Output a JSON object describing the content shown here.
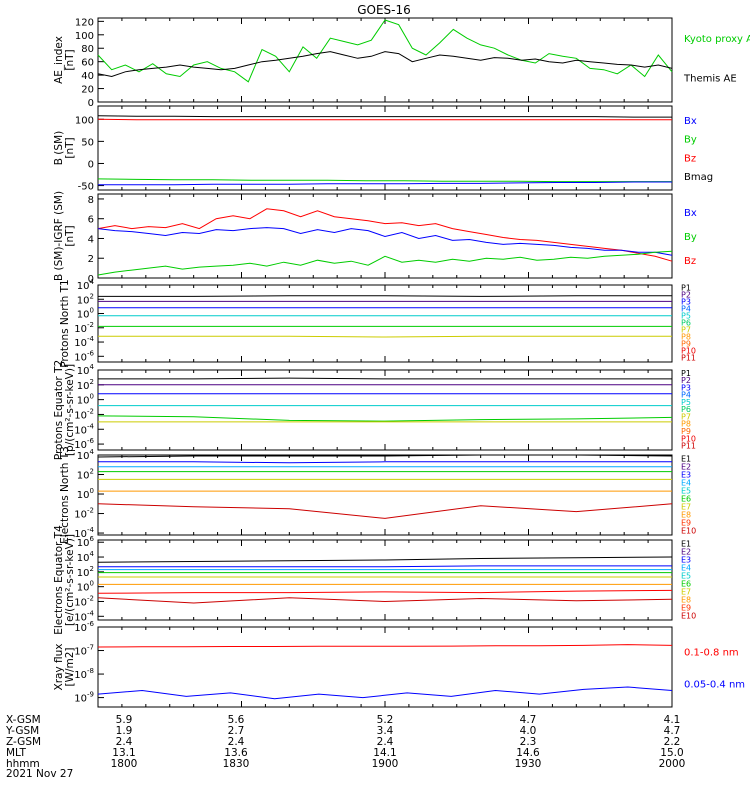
{
  "title": "GOES-16",
  "date_label": "2021 Nov 27",
  "colors": {
    "black": "#000000",
    "blue": "#0000ff",
    "green": "#00cc00",
    "red": "#ff0000",
    "cyan": "#00cccc",
    "yellow": "#cccc00",
    "orange": "#ff9900"
  },
  "ephemeris": {
    "rows": [
      {
        "label": "X-GSM",
        "values": [
          "5.9",
          "5.6",
          "5.2",
          "4.7",
          "4.1"
        ]
      },
      {
        "label": "Y-GSM",
        "values": [
          "1.9",
          "2.7",
          "3.4",
          "4.0",
          "4.7"
        ]
      },
      {
        "label": "Z-GSM",
        "values": [
          "2.4",
          "2.4",
          "2.4",
          "2.3",
          "2.2"
        ]
      },
      {
        "label": "MLT",
        "values": [
          "13.1",
          "13.6",
          "14.1",
          "14.6",
          "15.0"
        ]
      },
      {
        "label": "hhmm",
        "values": [
          "1800",
          "1830",
          "1900",
          "1930",
          "2000"
        ]
      }
    ]
  },
  "chart_data": [
    {
      "type": "line",
      "ylabel": "AE_index [nT]",
      "yticks": [
        "120",
        "100",
        "80",
        "60",
        "40",
        "20",
        "0"
      ],
      "ylim": [
        0,
        125
      ],
      "legend": [
        {
          "text": "Kyoto proxy AE",
          "color": "#00cc00"
        },
        {
          "text": "Themis AE",
          "color": "#000000"
        }
      ],
      "series": [
        {
          "name": "Kyoto proxy AE",
          "color": "#00cc00",
          "values": [
            70,
            48,
            55,
            45,
            57,
            42,
            38,
            55,
            60,
            50,
            45,
            30,
            78,
            68,
            45,
            82,
            65,
            95,
            90,
            85,
            92,
            122,
            115,
            80,
            70,
            88,
            108,
            95,
            85,
            80,
            70,
            62,
            58,
            72,
            68,
            65,
            50,
            48,
            42,
            55,
            38,
            70,
            45
          ]
        },
        {
          "name": "Themis AE",
          "color": "#000000",
          "values": [
            42,
            38,
            45,
            48,
            50,
            52,
            55,
            52,
            50,
            48,
            50,
            55,
            60,
            62,
            65,
            68,
            72,
            75,
            70,
            65,
            68,
            75,
            72,
            60,
            65,
            70,
            68,
            65,
            62,
            66,
            65,
            62,
            64,
            60,
            58,
            62,
            60,
            58,
            56,
            55,
            52,
            55,
            50
          ]
        }
      ]
    },
    {
      "type": "line",
      "ylabel": "B (SM) [nT]",
      "yticks": [
        "100",
        "50",
        "0",
        "-50"
      ],
      "ylim": [
        -60,
        130
      ],
      "legend": [
        {
          "text": "Bx",
          "color": "#0000ff"
        },
        {
          "text": "By",
          "color": "#00cc00"
        },
        {
          "text": "Bz",
          "color": "#ff0000"
        },
        {
          "text": "Bmag",
          "color": "#000000"
        }
      ],
      "series": [
        {
          "name": "Bmag",
          "color": "#000000",
          "values": [
            108,
            107,
            107,
            106,
            106,
            106,
            106,
            106,
            106,
            106,
            106,
            106,
            106,
            106,
            105,
            105
          ]
        },
        {
          "name": "Bz",
          "color": "#ff0000",
          "values": [
            100,
            99,
            99,
            99,
            99,
            99,
            99,
            99,
            99,
            99,
            99,
            99,
            99,
            99,
            99,
            99
          ]
        },
        {
          "name": "By",
          "color": "#00cc00",
          "values": [
            -35,
            -36,
            -37,
            -37,
            -38,
            -38,
            -38,
            -39,
            -39,
            -40,
            -40,
            -40,
            -41,
            -41,
            -41,
            -41
          ]
        },
        {
          "name": "Bx",
          "color": "#0000ff",
          "values": [
            -48,
            -48,
            -48,
            -47,
            -47,
            -47,
            -46,
            -46,
            -46,
            -45,
            -45,
            -44,
            -43,
            -43,
            -42,
            -42
          ]
        }
      ]
    },
    {
      "type": "line",
      "ylabel": "B (SM)-IGRF (SM) [nT]",
      "yticks": [
        "8",
        "6",
        "4",
        "2",
        "0"
      ],
      "ylim": [
        0,
        8.5
      ],
      "legend": [
        {
          "text": "Bx",
          "color": "#0000ff"
        },
        {
          "text": "By",
          "color": "#00cc00"
        },
        {
          "text": "Bz",
          "color": "#ff0000"
        }
      ],
      "series": [
        {
          "name": "Bz",
          "color": "#ff0000",
          "values": [
            5.0,
            5.3,
            5.0,
            5.2,
            5.1,
            5.5,
            5.0,
            6.0,
            6.3,
            6.0,
            7.0,
            6.8,
            6.2,
            6.8,
            6.2,
            6.0,
            5.8,
            5.5,
            5.6,
            5.3,
            5.5,
            5.0,
            4.7,
            4.4,
            4.1,
            3.9,
            3.8,
            3.6,
            3.4,
            3.2,
            3.0,
            2.8,
            2.5,
            2.2,
            1.7
          ]
        },
        {
          "name": "Bx",
          "color": "#0000ff",
          "values": [
            5.0,
            4.8,
            4.7,
            4.5,
            4.3,
            4.6,
            4.5,
            4.9,
            4.8,
            5.0,
            5.1,
            5.0,
            4.5,
            4.9,
            4.6,
            5.0,
            4.8,
            4.2,
            4.6,
            4.0,
            4.3,
            3.8,
            3.9,
            3.6,
            3.4,
            3.5,
            3.4,
            3.3,
            3.1,
            3.0,
            2.8,
            2.8,
            2.6,
            2.6,
            2.3
          ]
        },
        {
          "name": "By",
          "color": "#00cc00",
          "values": [
            0.3,
            0.6,
            0.8,
            1.0,
            1.2,
            0.9,
            1.1,
            1.2,
            1.3,
            1.5,
            1.2,
            1.6,
            1.3,
            1.8,
            1.5,
            1.7,
            1.3,
            2.2,
            1.6,
            1.8,
            1.6,
            1.9,
            1.7,
            2.0,
            1.9,
            2.1,
            1.8,
            1.9,
            2.1,
            2.0,
            2.2,
            2.3,
            2.4,
            2.6,
            2.7
          ]
        }
      ]
    },
    {
      "type": "line",
      "log": true,
      "ylabel": "Protons North T1",
      "ytick_exponents": [
        4,
        2,
        0,
        -2,
        -4,
        -6
      ],
      "ylim_exp": [
        -6.8,
        4
      ],
      "channel_labels": [
        "P1",
        "P2",
        "P3",
        "P4",
        "P5",
        "P6",
        "P7",
        "P8",
        "P9",
        "P10",
        "P11"
      ],
      "channel_colors": [
        "#000000",
        "#4b0082",
        "#0000ff",
        "#0066ff",
        "#00cccc",
        "#00cc66",
        "#cccc00",
        "#ff9900",
        "#ff6600",
        "#ee0000",
        "#cc0000"
      ],
      "series": [
        {
          "color": "#000000",
          "values": [
            2.4,
            2.4,
            2.5,
            2.5,
            2.4,
            2.5,
            2.5
          ]
        },
        {
          "color": "#4b0082",
          "values": [
            1.7,
            1.7,
            1.7,
            1.7,
            1.7,
            1.7,
            1.7
          ]
        },
        {
          "color": "#0000ff",
          "values": [
            0.8,
            0.8,
            0.8,
            0.8,
            0.8,
            0.8,
            0.8
          ]
        },
        {
          "color": "#00cccc",
          "values": [
            -0.3,
            -0.3,
            -0.3,
            -0.3,
            -0.3,
            -0.3,
            -0.3
          ]
        },
        {
          "color": "#00cc00",
          "values": [
            -1.8,
            -1.8,
            -1.8,
            -1.8,
            -1.8,
            -1.8,
            -1.8
          ]
        },
        {
          "color": "#cccc00",
          "values": [
            -3.2,
            -3.2,
            -3.2,
            -3.3,
            -3.2,
            -3.2,
            -3.2
          ]
        }
      ]
    },
    {
      "type": "line",
      "log": true,
      "ylabel": "Protons Equator T2 [p/(cm²-s-sr-keV)]",
      "ytick_exponents": [
        4,
        2,
        0,
        -2,
        -4,
        -6
      ],
      "ylim_exp": [
        -6.8,
        4
      ],
      "channel_labels": [
        "P1",
        "P2",
        "P3",
        "P4",
        "P5",
        "P6",
        "P7",
        "P8",
        "P9",
        "P10",
        "P11"
      ],
      "channel_colors": [
        "#000000",
        "#4b0082",
        "#0000ff",
        "#0066ff",
        "#00cccc",
        "#00cc66",
        "#cccc00",
        "#ff9900",
        "#ff6600",
        "#ee0000",
        "#cc0000"
      ],
      "series": [
        {
          "color": "#000000",
          "values": [
            2.8,
            2.8,
            2.9,
            2.8,
            2.8,
            2.8,
            2.8
          ]
        },
        {
          "color": "#4b0082",
          "values": [
            2.0,
            2.0,
            2.0,
            2.0,
            2.0,
            2.0,
            2.0
          ]
        },
        {
          "color": "#0000ff",
          "values": [
            0.8,
            0.8,
            0.8,
            0.8,
            0.8,
            0.8,
            0.8
          ]
        },
        {
          "color": "#00cccc",
          "values": [
            -0.8,
            -0.8,
            -0.8,
            -0.8,
            -0.8,
            -0.8,
            -0.8
          ]
        },
        {
          "color": "#00cc00",
          "values": [
            -2.2,
            -2.3,
            -2.8,
            -2.9,
            -2.7,
            -2.6,
            -2.4
          ]
        },
        {
          "color": "#cccc00",
          "values": [
            -3.0,
            -3.0,
            -3.0,
            -3.0,
            -3.0,
            -3.0,
            -3.0
          ]
        }
      ]
    },
    {
      "type": "line",
      "log": true,
      "ylabel": "Electrons North T3",
      "ytick_exponents": [
        4,
        2,
        0,
        -2,
        -4
      ],
      "ylim_exp": [
        -4.2,
        4
      ],
      "channel_labels": [
        "E1",
        "E2",
        "E3",
        "E4",
        "E5",
        "E6",
        "E7",
        "E8",
        "E9",
        "E10"
      ],
      "channel_colors": [
        "#000000",
        "#4b0082",
        "#0000ff",
        "#00aaff",
        "#00cccc",
        "#00cc00",
        "#cccc00",
        "#ff9900",
        "#ff3300",
        "#cc0000"
      ],
      "series": [
        {
          "color": "#000000",
          "values": [
            3.8,
            3.9,
            3.9,
            3.9,
            4.0,
            4.0,
            3.9
          ]
        },
        {
          "color": "#0000ff",
          "values": [
            3.3,
            3.3,
            3.2,
            3.3,
            3.3,
            3.3,
            3.3
          ]
        },
        {
          "color": "#00aaff",
          "values": [
            2.8,
            2.8,
            2.8,
            2.8,
            2.8,
            2.8,
            2.8
          ]
        },
        {
          "color": "#00cc00",
          "values": [
            2.3,
            2.3,
            2.3,
            2.3,
            2.3,
            2.3,
            2.3
          ]
        },
        {
          "color": "#cccc00",
          "values": [
            1.5,
            1.5,
            1.5,
            1.5,
            1.5,
            1.5,
            1.5
          ]
        },
        {
          "color": "#ff9900",
          "values": [
            0.3,
            0.3,
            0.3,
            0.3,
            0.3,
            0.3,
            0.3
          ]
        },
        {
          "color": "#cc0000",
          "values": [
            -1.0,
            -1.3,
            -1.5,
            -2.5,
            -1.2,
            -1.8,
            -1.0
          ]
        }
      ]
    },
    {
      "type": "line",
      "log": true,
      "ylabel": "Electrons Equator T4 [e/(cm²-s-sr-keV)]",
      "ytick_exponents": [
        6,
        4,
        2,
        0,
        -2,
        -4
      ],
      "ylim_exp": [
        -4.5,
        6.3
      ],
      "channel_labels": [
        "E1",
        "E2",
        "E3",
        "E4",
        "E5",
        "E6",
        "E7",
        "E8",
        "E9",
        "E10"
      ],
      "channel_colors": [
        "#000000",
        "#4b0082",
        "#0000ff",
        "#00aaff",
        "#00cccc",
        "#00cc00",
        "#cccc00",
        "#ff9900",
        "#ff3300",
        "#cc0000"
      ],
      "series": [
        {
          "color": "#000000",
          "values": [
            3.3,
            3.4,
            3.5,
            3.6,
            3.8,
            3.9,
            4.0
          ]
        },
        {
          "color": "#0000ff",
          "values": [
            2.7,
            2.7,
            2.7,
            2.7,
            2.8,
            2.8,
            2.8
          ]
        },
        {
          "color": "#00aaff",
          "values": [
            2.3,
            2.3,
            2.3,
            2.3,
            2.3,
            2.3,
            2.3
          ]
        },
        {
          "color": "#00cc00",
          "values": [
            1.9,
            1.9,
            1.9,
            1.9,
            1.9,
            1.9,
            1.9
          ]
        },
        {
          "color": "#cccc00",
          "values": [
            1.3,
            1.3,
            1.3,
            1.3,
            1.3,
            1.3,
            1.3
          ]
        },
        {
          "color": "#ff9900",
          "values": [
            0.3,
            0.3,
            0.3,
            0.3,
            0.3,
            0.3,
            0.3
          ]
        },
        {
          "color": "#ff0000",
          "values": [
            -0.9,
            -0.8,
            -0.8,
            -0.7,
            -0.8,
            -0.6,
            -0.5
          ]
        },
        {
          "color": "#cc0000",
          "values": [
            -1.5,
            -2.2,
            -1.5,
            -2.0,
            -1.6,
            -1.9,
            -1.7
          ]
        }
      ]
    },
    {
      "type": "line",
      "log": true,
      "ylabel": "Xray flux [W/m2]",
      "ytick_exponents": [
        -6,
        -7,
        -8,
        -9
      ],
      "ylim_exp": [
        -9.4,
        -6
      ],
      "legend": [
        {
          "text": "0.1-0.8 nm",
          "color": "#ff0000"
        },
        {
          "text": "0.05-0.4 nm",
          "color": "#0000ff"
        }
      ],
      "series": [
        {
          "name": "0.1-0.8 nm",
          "color": "#ff0000",
          "values": [
            -6.85,
            -6.84,
            -6.84,
            -6.83,
            -6.83,
            -6.82,
            -6.82,
            -6.82,
            -6.81,
            -6.8,
            -6.8,
            -6.78,
            -6.75,
            -6.78
          ]
        },
        {
          "name": "0.05-0.4 nm",
          "color": "#0000ff",
          "values": [
            -8.85,
            -8.7,
            -8.95,
            -8.8,
            -9.05,
            -8.85,
            -9.0,
            -8.8,
            -8.95,
            -8.7,
            -8.85,
            -8.65,
            -8.55,
            -8.7
          ]
        }
      ]
    }
  ]
}
